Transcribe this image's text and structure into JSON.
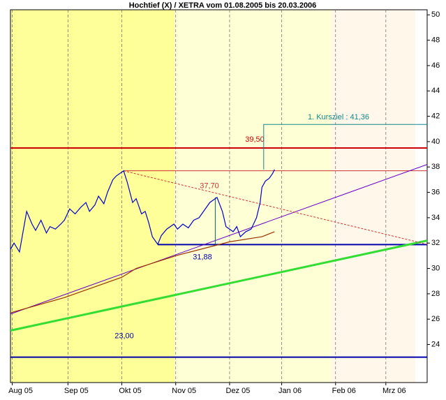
{
  "chart_data": {
    "type": "line",
    "title": "Hochtief (X) / XETRA vom 01.08.2005 bis 20.03.2006",
    "xlim": [
      0,
      232
    ],
    "xticks": [
      {
        "value": 1,
        "label": "Aug 05"
      },
      {
        "value": 32,
        "label": "Sep 05"
      },
      {
        "value": 62,
        "label": "Okt 05"
      },
      {
        "value": 92,
        "label": "Nov 05"
      },
      {
        "value": 122,
        "label": "Dez 05"
      },
      {
        "value": 151,
        "label": "Jan 06"
      },
      {
        "value": 181,
        "label": "Feb 06"
      },
      {
        "value": 209,
        "label": "Mrz 06"
      }
    ],
    "ylim": [
      21,
      50.4
    ],
    "yticks": [
      24,
      26,
      28,
      30,
      32,
      34,
      36,
      38,
      40,
      42,
      44,
      46,
      48,
      50
    ],
    "grid": true,
    "series": [
      {
        "color": "#0000cc",
        "x": [
          0,
          2,
          5,
          9,
          12,
          14,
          17,
          20,
          22,
          25,
          28,
          30,
          33,
          36,
          39,
          42,
          44,
          47,
          49,
          52,
          54,
          57,
          59,
          63,
          65,
          68,
          70,
          73,
          75,
          77,
          79,
          82,
          84,
          87,
          91,
          93,
          96,
          99,
          102,
          105,
          108,
          111,
          115,
          118,
          120,
          124,
          126,
          128,
          131,
          134,
          137,
          139,
          140,
          142,
          144,
          146,
          147
        ],
        "values": [
          31.5,
          32,
          31.3,
          34.5,
          33.5,
          33,
          33.8,
          32.8,
          33.3,
          33.1,
          33.5,
          33.8,
          34.7,
          34.3,
          34.8,
          35.2,
          34.5,
          35,
          35.7,
          35.1,
          36,
          37,
          37.3,
          37.7,
          36.8,
          35.2,
          35.5,
          34.3,
          34.5,
          33.6,
          32.5,
          31.9,
          32.6,
          33.1,
          33.5,
          33.1,
          33.5,
          33.2,
          33.8,
          34,
          34.6,
          35.2,
          35.6,
          34.5,
          33.3,
          32.9,
          33.3,
          32.5,
          32.9,
          33.1,
          34,
          35.2,
          36.4,
          36.9,
          37.1,
          37.5,
          37.8
        ]
      },
      {
        "color": "#993300",
        "x": [
          0,
          30,
          62,
          70,
          92,
          122,
          140,
          147
        ],
        "values": [
          26.5,
          27.7,
          29.3,
          30,
          31,
          32.1,
          32.5,
          32.9
        ]
      }
    ],
    "trendlines": [
      {
        "color": "#6600cc",
        "x": [
          0,
          232
        ],
        "values": [
          26.4,
          38.2
        ]
      },
      {
        "color": "#33dd33",
        "x": [
          0,
          232
        ],
        "values": [
          25.1,
          32.2
        ]
      },
      {
        "color": "#cc3333",
        "x": [
          63,
          232
        ],
        "values": [
          37.7,
          31.9
        ],
        "dash": true
      },
      {
        "color": "#006666",
        "x": [
          114,
          114
        ],
        "values": [
          35.6,
          31.88
        ]
      },
      {
        "color": "#118888",
        "x": [
          141,
          141,
          232
        ],
        "values": [
          37.8,
          41.36,
          41.36
        ]
      }
    ],
    "levels": [
      {
        "value": 39.5,
        "label": "39,50",
        "color": "#cc0000",
        "x": [
          0,
          232
        ]
      },
      {
        "value": 37.7,
        "label": "37,70",
        "color": "#cc3333",
        "x": [
          63,
          232
        ]
      },
      {
        "value": 31.88,
        "label": "31,88",
        "color": "#0000aa",
        "x": [
          82,
          232
        ]
      },
      {
        "value": 23,
        "label": "23,00",
        "color": "#0000aa",
        "x": [
          0,
          232
        ]
      }
    ],
    "annotation": {
      "value": 41.36,
      "label": "1. Kursziel : 41,36",
      "color": "#118888"
    }
  }
}
